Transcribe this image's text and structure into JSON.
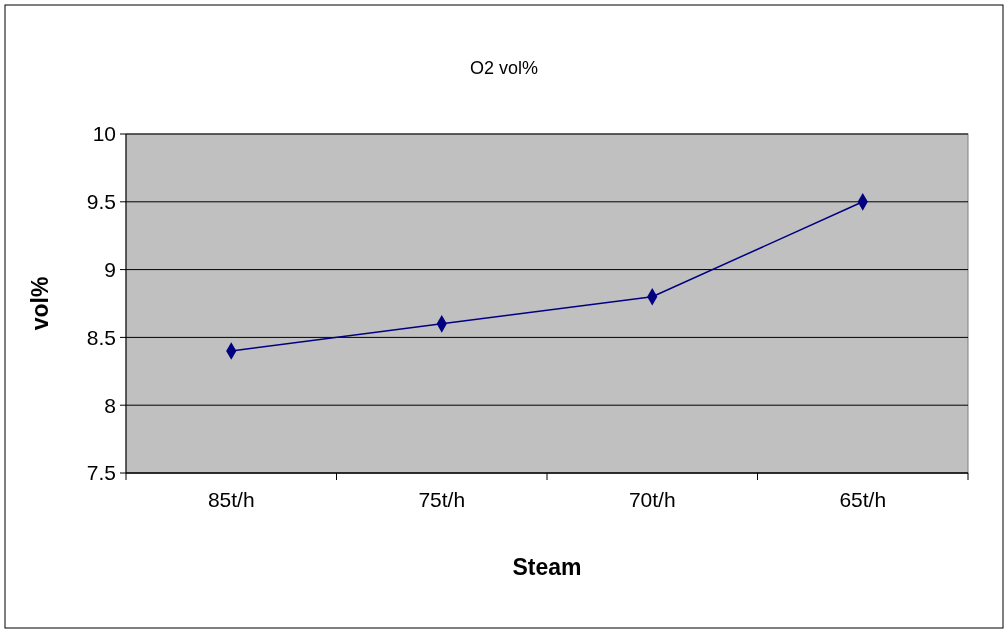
{
  "chart_data": {
    "type": "line",
    "title": "O2 vol%",
    "xlabel": "Steam",
    "ylabel": "vol%",
    "categories": [
      "85t/h",
      "75t/h",
      "70t/h",
      "65t/h"
    ],
    "series": [
      {
        "color": "#000080",
        "values": [
          8.4,
          8.6,
          8.8,
          9.5
        ]
      }
    ],
    "ylim": [
      7.5,
      10
    ],
    "yticks": [
      7.5,
      8,
      8.5,
      9,
      9.5,
      10
    ],
    "grid": "y",
    "marker": "diamond",
    "line_style": "solid"
  }
}
